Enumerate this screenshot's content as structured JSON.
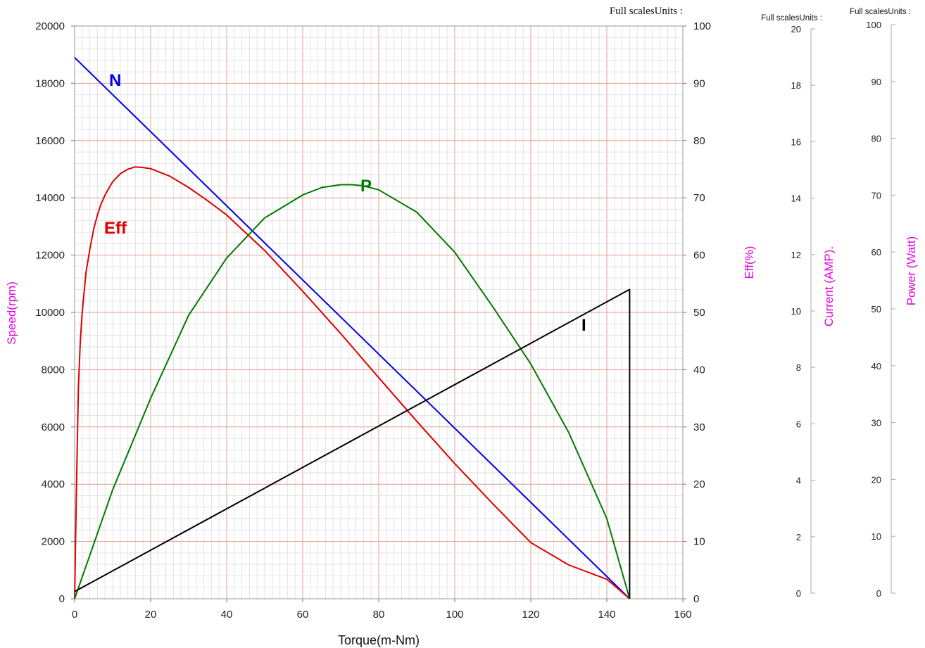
{
  "chart_data": {
    "type": "line",
    "xlabel": "Torque(m-Nm)",
    "xlim": [
      0,
      160
    ],
    "x_ticks": [
      "0",
      "20",
      "40",
      "60",
      "80",
      "100",
      "120",
      "140",
      "160"
    ],
    "axes": {
      "speed": {
        "title": "Speed(rpm)",
        "range": [
          0,
          20000
        ],
        "ticks": [
          "0",
          "2000",
          "4000",
          "6000",
          "8000",
          "10000",
          "12000",
          "14000",
          "16000",
          "18000",
          "20000"
        ]
      },
      "eff": {
        "title": "Eff(%)",
        "header": "Full scalesUnits :",
        "range": [
          0,
          100
        ],
        "ticks": [
          "0",
          "10",
          "20",
          "30",
          "40",
          "50",
          "60",
          "70",
          "80",
          "90",
          "100"
        ]
      },
      "current": {
        "title": "Current (AMP).",
        "header": "Full scalesUnits :",
        "range": [
          0,
          20
        ],
        "ticks": [
          "0",
          "2",
          "4",
          "6",
          "8",
          "10",
          "12",
          "14",
          "16",
          "18",
          "20"
        ]
      },
      "power": {
        "title": "Power (Watt)",
        "header": "Full scalesUnits :",
        "range": [
          0,
          100
        ],
        "ticks": [
          "0",
          "10",
          "20",
          "30",
          "40",
          "50",
          "60",
          "70",
          "80",
          "90",
          "100"
        ]
      }
    },
    "grid": true,
    "series": [
      {
        "name": "N",
        "axis": "speed",
        "color": "#0000ee",
        "x": [
          0,
          146
        ],
        "y": [
          18900,
          0
        ]
      },
      {
        "name": "Eff",
        "axis": "eff",
        "color": "#e00000",
        "x": [
          0,
          0.5,
          1,
          1.5,
          2,
          3,
          4,
          5,
          6,
          7,
          8,
          10,
          12,
          14,
          16,
          18,
          20,
          25,
          30,
          35,
          40,
          50,
          60,
          70,
          80,
          90,
          100,
          110,
          120,
          130,
          140,
          146
        ],
        "y": [
          0,
          20,
          37,
          45,
          50,
          57,
          61,
          64.5,
          67,
          69,
          70.5,
          72.8,
          74.2,
          75,
          75.4,
          75.3,
          75.1,
          73.8,
          71.8,
          69.5,
          67,
          60.8,
          53.7,
          46.3,
          38.6,
          31,
          23.6,
          16.6,
          9.8,
          5.9,
          3.4,
          0
        ]
      },
      {
        "name": "P",
        "axis": "power",
        "color": "#007a00",
        "x": [
          0,
          10,
          20,
          30,
          40,
          50,
          60,
          65,
          70,
          73,
          76,
          80,
          90,
          100,
          110,
          120,
          130,
          140,
          146
        ],
        "y": [
          0,
          19,
          35,
          49.5,
          59.5,
          66.5,
          70.5,
          71.8,
          72.3,
          72.3,
          72.1,
          71.4,
          67.5,
          60.5,
          51,
          41,
          29,
          14,
          0
        ]
      },
      {
        "name": "I",
        "axis": "current",
        "color": "#000000",
        "x": [
          0,
          146,
          146
        ],
        "y": [
          0.25,
          10.8,
          0
        ]
      }
    ]
  }
}
